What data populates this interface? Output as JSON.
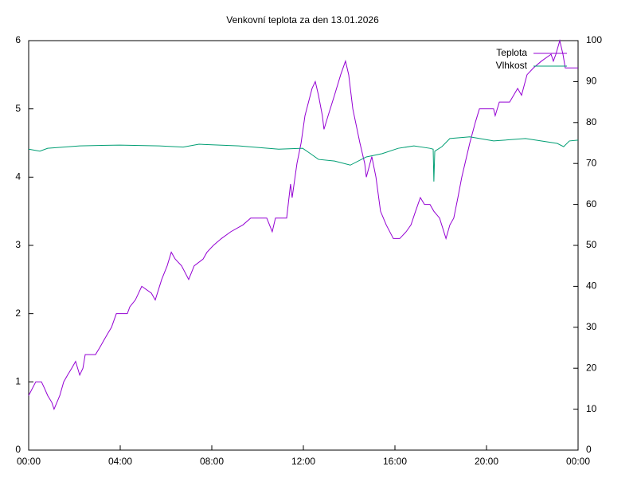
{
  "chart_data": {
    "type": "line",
    "title": "Venkovní teplota za den 13.01.2026",
    "xlim": [
      0,
      24
    ],
    "xticks": [
      {
        "value": 0,
        "label": "00:00"
      },
      {
        "value": 4,
        "label": "04:00"
      },
      {
        "value": 8,
        "label": "08:00"
      },
      {
        "value": 12,
        "label": "12:00"
      },
      {
        "value": 16,
        "label": "16:00"
      },
      {
        "value": 20,
        "label": "20:00"
      },
      {
        "value": 24,
        "label": "00:00"
      }
    ],
    "ylim": [
      0,
      6
    ],
    "yticks": [
      0,
      1,
      2,
      3,
      4,
      5,
      6
    ],
    "y2lim": [
      0,
      100
    ],
    "y2ticks": [
      0,
      10,
      20,
      30,
      40,
      50,
      60,
      70,
      80,
      90,
      100
    ],
    "legend": "top-right",
    "series": [
      {
        "name": "Teplota",
        "color": "#9400d3",
        "x": [
          0,
          0.31,
          0.56,
          0.7,
          0.83,
          1.01,
          1.11,
          1.36,
          1.53,
          1.7,
          1.88,
          2.05,
          2.23,
          2.37,
          2.47,
          2.92,
          3.1,
          3.27,
          3.44,
          3.62,
          3.83,
          4.31,
          4.42,
          4.66,
          4.94,
          5.36,
          5.53,
          5.81,
          6.05,
          6.23,
          6.4,
          6.68,
          6.99,
          7.23,
          7.62,
          7.79,
          8.07,
          8.42,
          8.83,
          9.36,
          9.7,
          10.4,
          10.64,
          10.78,
          11.27,
          11.44,
          11.51,
          11.72,
          11.9,
          12.07,
          12.38,
          12.52,
          12.66,
          12.83,
          12.9,
          13.08,
          13.36,
          13.63,
          13.84,
          13.98,
          14.16,
          14.47,
          14.68,
          14.75,
          14.99,
          15.17,
          15.37,
          15.62,
          15.93,
          16.21,
          16.49,
          16.7,
          16.9,
          17.11,
          17.29,
          17.53,
          17.7,
          17.95,
          18.23,
          18.4,
          18.57,
          18.75,
          18.92,
          19.27,
          19.51,
          19.69,
          20.31,
          20.38,
          20.56,
          21.01,
          21.36,
          21.53,
          21.77,
          22.05,
          22.4,
          22.82,
          22.92,
          23.03,
          23.2,
          23.34,
          23.44,
          24
        ],
        "values": [
          0.8,
          1.0,
          1.0,
          0.9,
          0.8,
          0.7,
          0.6,
          0.8,
          1.0,
          1.1,
          1.2,
          1.3,
          1.1,
          1.2,
          1.4,
          1.4,
          1.5,
          1.6,
          1.7,
          1.8,
          2.0,
          2.0,
          2.1,
          2.2,
          2.4,
          2.3,
          2.2,
          2.5,
          2.7,
          2.9,
          2.8,
          2.7,
          2.5,
          2.7,
          2.8,
          2.9,
          3.0,
          3.1,
          3.2,
          3.3,
          3.4,
          3.4,
          3.2,
          3.4,
          3.4,
          3.9,
          3.7,
          4.2,
          4.5,
          4.9,
          5.3,
          5.4,
          5.2,
          4.9,
          4.7,
          4.9,
          5.2,
          5.5,
          5.7,
          5.5,
          5.0,
          4.5,
          4.2,
          4.0,
          4.3,
          4.0,
          3.5,
          3.3,
          3.1,
          3.1,
          3.2,
          3.3,
          3.5,
          3.7,
          3.6,
          3.6,
          3.5,
          3.4,
          3.1,
          3.3,
          3.4,
          3.7,
          4.0,
          4.5,
          4.8,
          5.0,
          5.0,
          4.9,
          5.1,
          5.1,
          5.3,
          5.2,
          5.5,
          5.6,
          5.7,
          5.8,
          5.7,
          5.8,
          6.0,
          5.8,
          5.6,
          5.6
        ]
      },
      {
        "name": "Vlhkost",
        "color": "#009e73",
        "axis": "y2",
        "x": [
          0,
          0.49,
          0.83,
          2.23,
          3.97,
          5.7,
          6.75,
          7.44,
          9.18,
          10.92,
          11.97,
          12.31,
          12.66,
          13.36,
          14.05,
          14.75,
          15.44,
          16.14,
          16.83,
          17.53,
          17.67,
          17.7,
          17.74,
          18.05,
          18.4,
          19.27,
          20.31,
          21.7,
          23.09,
          23.37,
          23.62,
          24
        ],
        "values": [
          73.5,
          73,
          73.7,
          74.3,
          74.5,
          74.3,
          74,
          74.7,
          74.3,
          73.5,
          73.7,
          72.4,
          71,
          70.6,
          69.6,
          71.6,
          72.4,
          73.7,
          74.3,
          73.7,
          73.5,
          65.6,
          73,
          74.1,
          76.1,
          76.5,
          75.5,
          76.1,
          74.9,
          74.1,
          75.5,
          75.7
        ]
      }
    ]
  }
}
